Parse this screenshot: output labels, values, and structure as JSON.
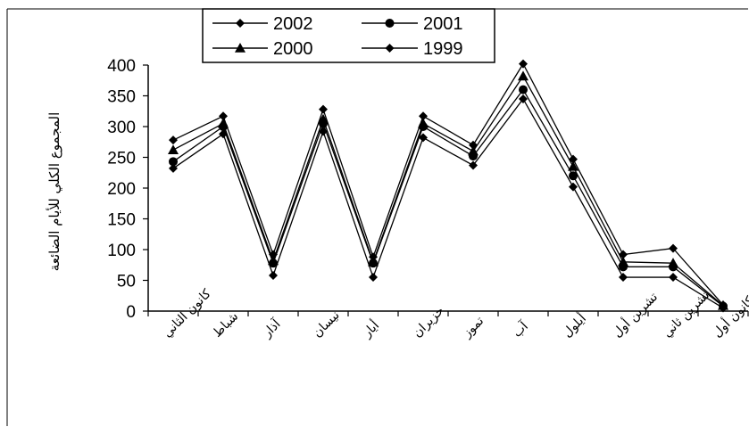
{
  "chart_data": {
    "type": "line",
    "title": "",
    "xlabel": "",
    "ylabel": "المجموع الكلي للأيام الضائعة",
    "ylim": [
      0,
      400
    ],
    "yticks": [
      0,
      50,
      100,
      150,
      200,
      250,
      300,
      350,
      400
    ],
    "categories": [
      "كانون الثاني",
      "شباط",
      "آذار",
      "نيسان",
      "أيار",
      "حزيران",
      "تموز",
      "آب",
      "أيلول",
      "تشرين أول",
      "تشرين ثاني",
      "كانون أول"
    ],
    "series": [
      {
        "name": "2002",
        "marker": "diamond",
        "values": [
          278,
          317,
          92,
          328,
          88,
          317,
          270,
          402,
          247,
          92,
          102,
          10
        ]
      },
      {
        "name": "2001",
        "marker": "circle",
        "values": [
          243,
          300,
          78,
          305,
          78,
          300,
          252,
          360,
          220,
          72,
          72,
          8
        ]
      },
      {
        "name": "2000",
        "marker": "triangle",
        "values": [
          262,
          305,
          82,
          312,
          80,
          305,
          260,
          382,
          235,
          80,
          78,
          9
        ]
      },
      {
        "name": "1999",
        "marker": "diamond",
        "values": [
          232,
          288,
          58,
          292,
          55,
          282,
          237,
          345,
          202,
          55,
          55,
          5
        ]
      }
    ],
    "legend_position": "top"
  }
}
